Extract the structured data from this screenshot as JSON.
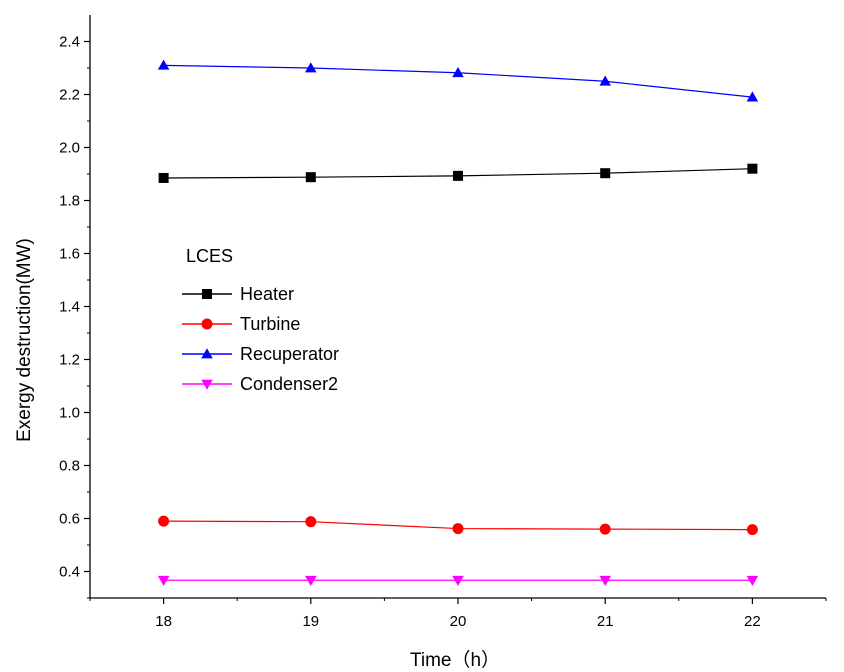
{
  "chart_data": {
    "type": "line",
    "title": "",
    "xlabel": "Time（h）",
    "ylabel": "Exergy destruction(MW)",
    "x": [
      18,
      19,
      20,
      21,
      22
    ],
    "xticks": [
      "18",
      "19",
      "20",
      "21",
      "22"
    ],
    "xlim": [
      17.5,
      22.5
    ],
    "yticks": [
      "0.4",
      "0.6",
      "0.8",
      "1.0",
      "1.2",
      "1.4",
      "1.6",
      "1.8",
      "2.0",
      "2.2",
      "2.4"
    ],
    "ylim": [
      0.3,
      2.5
    ],
    "grid": false,
    "legend_title": "LCES",
    "legend_position": "center-left",
    "series": [
      {
        "name": "Heater",
        "values": [
          1.885,
          1.888,
          1.893,
          1.903,
          1.92
        ],
        "color": "#000000",
        "marker": "square"
      },
      {
        "name": "Turbine",
        "values": [
          0.59,
          0.588,
          0.562,
          0.56,
          0.558
        ],
        "color": "#ff0000",
        "marker": "circle"
      },
      {
        "name": "Recuperator",
        "values": [
          2.31,
          2.3,
          2.282,
          2.25,
          2.19
        ],
        "color": "#0000ff",
        "marker": "triangle-up"
      },
      {
        "name": "Condenser2",
        "values": [
          0.367,
          0.367,
          0.367,
          0.367,
          0.367
        ],
        "color": "#ff00ff",
        "marker": "triangle-down"
      }
    ]
  }
}
